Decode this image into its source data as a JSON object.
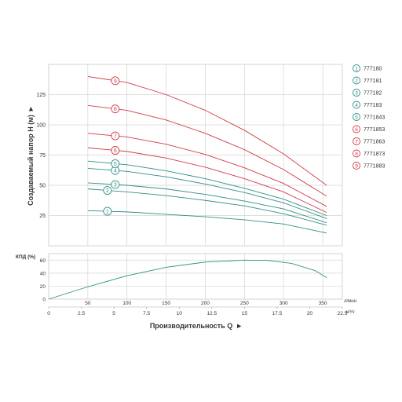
{
  "chart_data": [
    {
      "type": "line",
      "id": "head",
      "ylabel": "Создаваемый напор H (м)",
      "ylabel_arrow": "►",
      "ylim": [
        0,
        150
      ],
      "yticks": [
        25,
        50,
        75,
        100,
        125
      ],
      "xlim_lpm": [
        0,
        375
      ],
      "grid": true,
      "legend_position": "right",
      "series": [
        {
          "name": "777180",
          "badge": "1",
          "color": "#2f8f86",
          "x": [
            50,
            100,
            150,
            200,
            250,
            300,
            355
          ],
          "y": [
            29,
            28,
            26,
            24,
            21.5,
            18,
            10.5
          ]
        },
        {
          "name": "777181",
          "badge": "2",
          "color": "#2f8f86",
          "x": [
            50,
            100,
            150,
            200,
            250,
            300,
            355
          ],
          "y": [
            47,
            44.5,
            41.5,
            37.5,
            33,
            26.5,
            17
          ]
        },
        {
          "name": "777182",
          "badge": "3",
          "color": "#2f8f86",
          "x": [
            50,
            100,
            150,
            200,
            250,
            300,
            355
          ],
          "y": [
            52,
            50,
            47,
            42.5,
            37,
            30.5,
            19
          ]
        },
        {
          "name": "777183",
          "badge": "4",
          "color": "#2f8f86",
          "x": [
            50,
            100,
            150,
            200,
            250,
            300,
            355
          ],
          "y": [
            64,
            61.5,
            57,
            51,
            44,
            35.5,
            22.5
          ]
        },
        {
          "name": "7771843",
          "badge": "5",
          "color": "#2f8f86",
          "x": [
            50,
            100,
            150,
            200,
            250,
            300,
            355
          ],
          "y": [
            70,
            67,
            62,
            55.5,
            47.5,
            38.5,
            25
          ]
        },
        {
          "name": "7771853",
          "badge": "6",
          "color": "#d23b45",
          "x": [
            50,
            100,
            150,
            200,
            250,
            300,
            355
          ],
          "y": [
            81,
            78,
            72.5,
            65,
            55.5,
            44.5,
            27.5
          ]
        },
        {
          "name": "7771863",
          "badge": "7",
          "color": "#d23b45",
          "x": [
            50,
            100,
            150,
            200,
            250,
            300,
            355
          ],
          "y": [
            93,
            90,
            84,
            75.5,
            64.5,
            51.5,
            32.5
          ]
        },
        {
          "name": "7771873",
          "badge": "8",
          "color": "#d23b45",
          "x": [
            50,
            100,
            150,
            200,
            250,
            300,
            355
          ],
          "y": [
            116,
            112,
            104,
            93,
            79.5,
            63,
            41
          ]
        },
        {
          "name": "7771883",
          "badge": "9",
          "color": "#d23b45",
          "x": [
            50,
            100,
            150,
            200,
            250,
            300,
            355
          ],
          "y": [
            140,
            135,
            125,
            112,
            95.5,
            76,
            50
          ]
        }
      ]
    },
    {
      "type": "line",
      "id": "efficiency",
      "ylabel": "КПД (%)",
      "ylim": [
        0,
        70
      ],
      "yticks": [
        0,
        20,
        40,
        60
      ],
      "xlim_lpm": [
        0,
        375
      ],
      "grid": true,
      "series": [
        {
          "color": "#2f8f86",
          "x": [
            0,
            50,
            100,
            150,
            200,
            250,
            280,
            310,
            340,
            355
          ],
          "y": [
            0,
            19,
            36,
            49,
            57,
            60,
            59.5,
            55,
            44,
            33
          ]
        }
      ]
    }
  ],
  "x_axis_lpm": {
    "unit": "л/мин",
    "ticks": [
      "50",
      "100",
      "150",
      "200",
      "250",
      "300",
      "350"
    ]
  },
  "x_axis_m3h": {
    "unit": "м³/ч",
    "ticks": [
      "0",
      "2.5",
      "5",
      "7.5",
      "10",
      "12.5",
      "15",
      "17.5",
      "20",
      "22.5"
    ]
  },
  "xlabel": "Производительность Q",
  "xlabel_arrow": "►"
}
